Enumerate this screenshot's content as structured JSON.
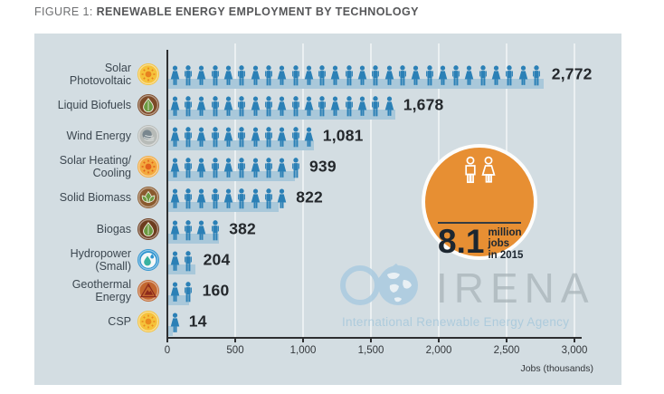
{
  "title": {
    "prefix": "FIGURE 1:",
    "main": "RENEWABLE ENERGY EMPLOYMENT BY TECHNOLOGY"
  },
  "chart_data": {
    "type": "bar",
    "title": "Renewable energy employment by technology",
    "xlabel": "Jobs (thousands)",
    "xlim": [
      0,
      3000
    ],
    "x_ticks": [
      "0",
      "500",
      "1,000",
      "1,500",
      "2,000",
      "2,500",
      "3,000"
    ],
    "grid": true,
    "icon_unit_jobs_thousands": 100,
    "rows": [
      {
        "label_lines": [
          "Solar",
          "Photovoltaic"
        ],
        "icon": "solar-photovoltaic",
        "value": 2772,
        "value_label": "2,772",
        "people": 28
      },
      {
        "label_lines": [
          "Liquid Biofuels"
        ],
        "icon": "liquid-biofuels",
        "value": 1678,
        "value_label": "1,678",
        "people": 17
      },
      {
        "label_lines": [
          "Wind Energy"
        ],
        "icon": "wind-energy",
        "value": 1081,
        "value_label": "1,081",
        "people": 11
      },
      {
        "label_lines": [
          "Solar Heating/",
          "Cooling"
        ],
        "icon": "solar-heating-cooling",
        "value": 939,
        "value_label": "939",
        "people": 10
      },
      {
        "label_lines": [
          "Solid Biomass"
        ],
        "icon": "solid-biomass",
        "value": 822,
        "value_label": "822",
        "people": 9
      },
      {
        "label_lines": [
          "Biogas"
        ],
        "icon": "biogas",
        "value": 382,
        "value_label": "382",
        "people": 4
      },
      {
        "label_lines": [
          "Hydropower",
          "(Small)"
        ],
        "icon": "hydropower-small",
        "value": 204,
        "value_label": "204",
        "people": 2
      },
      {
        "label_lines": [
          "Geothermal",
          "Energy"
        ],
        "icon": "geothermal-energy",
        "value": 160,
        "value_label": "160",
        "people": 2
      },
      {
        "label_lines": [
          "CSP"
        ],
        "icon": "csp",
        "value": 14,
        "value_label": "14",
        "people": 1
      }
    ]
  },
  "badge": {
    "value": "8.1",
    "unit_lines": [
      "million",
      "jobs",
      "in 2015"
    ]
  },
  "watermark": {
    "name": "IRENA",
    "tagline": "International Renewable Energy Agency"
  },
  "colors": {
    "panel_bg": "#d3dde2",
    "bar": "#a9c8da",
    "person": "#2b80b6",
    "badge_orange": "#e78f33",
    "value_text": "#24282c",
    "axis": "#2d2f31",
    "watermark_blue": "#aacbe0"
  }
}
